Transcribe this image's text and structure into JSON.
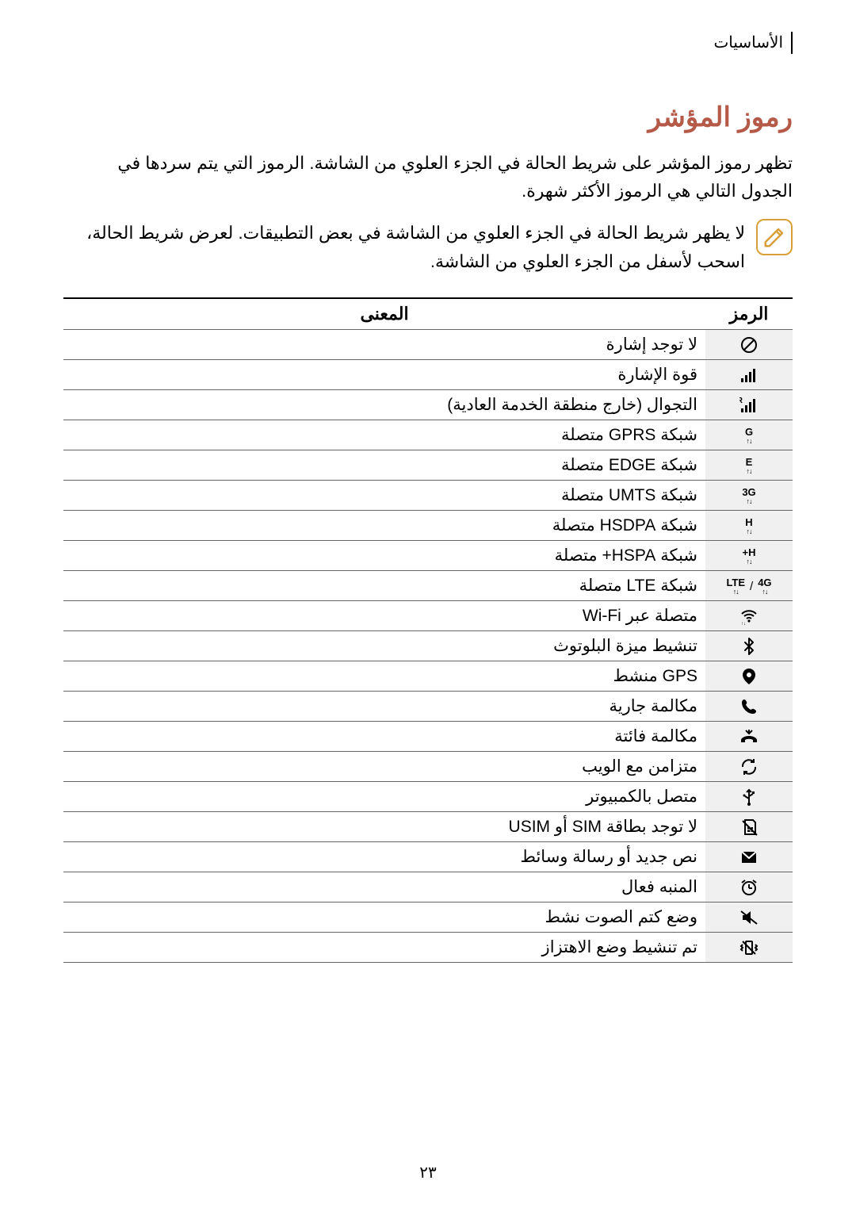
{
  "header": {
    "breadcrumb": "الأساسيات"
  },
  "title": "رموز المؤشر",
  "intro": "تظهر رموز المؤشر على شريط الحالة في الجزء العلوي من الشاشة. الرموز التي يتم سردها في الجدول التالي هي الرموز الأكثر شهرة.",
  "note": "لا يظهر شريط الحالة في الجزء العلوي من الشاشة في بعض التطبيقات. لعرض شريط الحالة، اسحب لأسفل من الجزء العلوي من الشاشة.",
  "table": {
    "columns": {
      "icon": "الرمز",
      "meaning": "المعنى"
    },
    "rows": [
      {
        "icon_name": "no-signal-icon",
        "svg_key": "no_signal",
        "meaning": "لا توجد إشارة"
      },
      {
        "icon_name": "signal-icon",
        "svg_key": "signal",
        "meaning": "قوة الإشارة"
      },
      {
        "icon_name": "roaming-icon",
        "svg_key": "roaming",
        "meaning": "التجوال (خارج منطقة الخدمة العادية)"
      },
      {
        "icon_name": "gprs-icon",
        "net_label": "G",
        "meaning": "شبكة GPRS متصلة"
      },
      {
        "icon_name": "edge-icon",
        "net_label": "E",
        "meaning": "شبكة EDGE متصلة"
      },
      {
        "icon_name": "umts-icon",
        "net_label": "3G",
        "meaning": "شبكة UMTS متصلة"
      },
      {
        "icon_name": "hsdpa-icon",
        "net_label": "H",
        "meaning": "شبكة HSDPA متصلة"
      },
      {
        "icon_name": "hspa-plus-icon",
        "net_label": "H+",
        "meaning": "شبكة HSPA+ متصلة"
      },
      {
        "icon_name": "lte-icon",
        "svg_key": "lte",
        "meaning": "شبكة LTE متصلة"
      },
      {
        "icon_name": "wifi-icon",
        "svg_key": "wifi",
        "meaning": "متصلة عبر Wi-Fi"
      },
      {
        "icon_name": "bluetooth-icon",
        "svg_key": "bluetooth",
        "meaning": "تنشيط ميزة البلوتوث"
      },
      {
        "icon_name": "gps-icon",
        "svg_key": "gps",
        "meaning": "GPS منشط"
      },
      {
        "icon_name": "call-icon",
        "svg_key": "call",
        "meaning": "مكالمة جارية"
      },
      {
        "icon_name": "missed-call-icon",
        "svg_key": "missed",
        "meaning": "مكالمة فائتة"
      },
      {
        "icon_name": "sync-icon",
        "svg_key": "sync",
        "meaning": "متزامن مع الويب"
      },
      {
        "icon_name": "usb-icon",
        "svg_key": "usb",
        "meaning": "متصل بالكمبيوتر"
      },
      {
        "icon_name": "no-sim-icon",
        "svg_key": "no_sim",
        "meaning": "لا توجد بطاقة SIM أو USIM"
      },
      {
        "icon_name": "message-icon",
        "svg_key": "message",
        "meaning": "نص جديد أو رسالة وسائط"
      },
      {
        "icon_name": "alarm-icon",
        "svg_key": "alarm",
        "meaning": "المنبه فعال"
      },
      {
        "icon_name": "mute-icon",
        "svg_key": "mute",
        "meaning": "وضع كتم الصوت نشط"
      },
      {
        "icon_name": "vibrate-icon",
        "svg_key": "vibrate",
        "meaning": "تم تنشيط وضع الاهتزاز"
      }
    ]
  },
  "page_number": "٢٣",
  "colors": {
    "title": "#b55a49",
    "note_border": "#d9a03a",
    "cell_icon_bg": "#f0f0f0",
    "text": "#000000",
    "rule": "#666666"
  },
  "svg_lib": {
    "no_signal": "<svg viewBox='0 0 24 24'><circle cx='12' cy='12' r='9' fill='none' stroke='#000' stroke-width='2'/><line x1='6' y1='18' x2='18' y2='6' stroke='#000' stroke-width='2'/></svg>",
    "signal": "<svg viewBox='0 0 24 24'><rect x='2' y='16' width='3' height='5' fill='#000'/><rect x='7' y='12' width='3' height='9' fill='#000'/><rect x='12' y='8' width='3' height='13' fill='#000'/><rect x='17' y='4' width='3' height='17' fill='#000'/></svg>",
    "roaming": "<svg viewBox='0 0 24 24'><rect x='2' y='16' width='3' height='5' fill='#000'/><rect x='7' y='12' width='3' height='9' fill='#000'/><rect x='12' y='8' width='3' height='13' fill='#000'/><rect x='17' y='4' width='3' height='17' fill='#000'/><text x='4' y='9' font-size='10' font-weight='700' font-family='Arial' fill='#000'>R</text></svg>",
    "wifi": "<svg viewBox='0 0 24 24'><path d='M3 9 C8 4 16 4 21 9' fill='none' stroke='#000' stroke-width='2'/><path d='M6 12 C9.5 9 14.5 9 18 12' fill='none' stroke='#000' stroke-width='2'/><path d='M9 15 C10.8 13.5 13.2 13.5 15 15' fill='none' stroke='#000' stroke-width='2'/><circle cx='12' cy='18' r='1.6' fill='#000'/><text x='8' y='23' font-size='6' font-family='Arial' fill='#000'>↓↑</text></svg>",
    "bluetooth": "<svg viewBox='0 0 24 24'><path d='M7 7 L17 17 L12 22 L12 2 L17 7 L7 17' fill='none' stroke='#000' stroke-width='2' stroke-linejoin='round' stroke-linecap='round'/></svg>",
    "gps": "<svg viewBox='0 0 24 24'><path d='M12 2 C7 2 4 6 4 10 C4 16 12 22 12 22 C12 22 20 16 20 10 C20 6 17 2 12 2 Z' fill='#000'/><circle cx='12' cy='10' r='3' fill='#fff'/></svg>",
    "call": "<svg viewBox='0 0 24 24'><path d='M6 3 C5 3 3 4 3 7 C3 14 10 21 17 21 C20 21 21 19 21 18 C21 17 20 16 18 15 C16.5 14.3 15.5 15 14.5 16 C12 15 9 12 8 9.5 C9 8.5 9.7 7.5 9 6 C8 4 7 3 6 3 Z' fill='#000'/></svg>",
    "missed": "<svg viewBox='0 0 24 24'><path d='M22 16 C22 14 18 11 12 11 C6 11 2 14 2 16 L2 19 L7 19 L7 16 C8 15.2 10 14.7 12 14.7 C14 14.7 16 15.2 17 16 L17 19 L22 19 Z' fill='#000'/><path d='M8 4 L12 8 L16 4' fill='none' stroke='#000' stroke-width='2'/><polyline points='12,8 12,3' fill='none' stroke='#000' stroke-width='2'/></svg>",
    "sync": "<svg viewBox='0 0 24 24'><path d='M4 12 A8 8 0 0 1 18 6' fill='none' stroke='#000' stroke-width='2'/><polyline points='18,2 18,6 14,6' fill='none' stroke='#000' stroke-width='2'/><path d='M20 12 A8 8 0 0 1 6 18' fill='none' stroke='#000' stroke-width='2'/><polyline points='6,22 6,18 10,18' fill='none' stroke='#000' stroke-width='2'/></svg>",
    "usb": "<svg viewBox='0 0 24 24'><circle cx='12' cy='21' r='2' fill='#000'/><line x1='12' y1='21' x2='12' y2='3' stroke='#000' stroke-width='2'/><polyline points='9,6 12,3 15,6' fill='none' stroke='#000' stroke-width='2'/><path d='M12 14 L7 11' stroke='#000' stroke-width='2'/><circle cx='6' cy='10' r='1.5' fill='#000'/><path d='M12 11 L17 8' stroke='#000' stroke-width='2'/><rect x='16' y='5' width='3' height='3' fill='#000'/></svg>",
    "no_sim": "<svg viewBox='0 0 24 24'><path d='M7 3 L17 3 L20 6 L20 21 L7 21 Z' fill='none' stroke='#000' stroke-width='2'/><rect x='10' y='12' width='7' height='6' fill='#000'/><line x1='14' y1='12' x2='14' y2='18' stroke='#fff' stroke-width='1'/><line x1='10' y1='15' x2='17' y2='15' stroke='#fff' stroke-width='1'/><line x1='4' y1='4' x2='22' y2='22' stroke='#000' stroke-width='2'/></svg>",
    "message": "<svg viewBox='0 0 24 24'><rect x='3' y='5' width='18' height='14' fill='#000'/><polyline points='3,5 12,13 21,5' fill='none' stroke='#fff' stroke-width='2'/></svg>",
    "alarm": "<svg viewBox='0 0 24 24'><circle cx='12' cy='13' r='8' fill='none' stroke='#000' stroke-width='2'/><line x1='12' y1='13' x2='12' y2='8' stroke='#000' stroke-width='2'/><line x1='12' y1='13' x2='16' y2='13' stroke='#000' stroke-width='2'/><line x1='3' y1='6' x2='7' y2='3' stroke='#000' stroke-width='2'/><line x1='21' y1='6' x2='17' y2='3' stroke='#000' stroke-width='2'/></svg>",
    "mute": "<svg viewBox='0 0 24 24'><path d='M4 9 L8 9 L14 4 L14 20 L8 15 L4 15 Z' fill='#000'/><line x1='2' y1='4' x2='22' y2='20' stroke='#000' stroke-width='2'/></svg>",
    "vibrate": "<svg viewBox='0 0 24 24'><rect x='8' y='4' width='8' height='16' rx='1' fill='none' stroke='#000' stroke-width='2'/><path d='M4 8 L2 10 L4 12 L2 14 L4 16' fill='none' stroke='#000' stroke-width='2'/><path d='M20 8 L22 10 L20 12 L22 14 L20 16' fill='none' stroke='#000' stroke-width='2'/><line x1='4' y1='4' x2='20' y2='20' stroke='#000' stroke-width='2'/></svg>",
    "note_pencil": "<svg viewBox='0 0 24 24'><path d='M3 17 L3 21 L7 21 L20 8 L16 4 Z' fill='none' stroke='#d9a03a' stroke-width='2' stroke-linejoin='round'/><line x1='14' y1='6' x2='18' y2='10' stroke='#d9a03a' stroke-width='2'/></svg>"
  }
}
